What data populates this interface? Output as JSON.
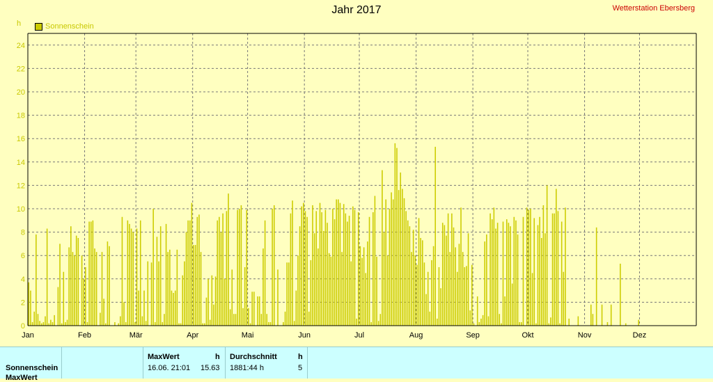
{
  "header": {
    "title": "Jahr 2017",
    "station": "Wetterstation Ebersberg",
    "unit": "h",
    "legend_label": "Sonnenschein"
  },
  "colors": {
    "bar": "#cccc00",
    "background": "#ffffc0",
    "axis_text": "#c8c800",
    "station": "#cc0000",
    "panel": "#ccffff"
  },
  "chart_data": {
    "type": "bar",
    "title": "Jahr 2017",
    "ylabel": "h",
    "ylim": [
      0,
      25
    ],
    "yticks": [
      0,
      2,
      4,
      6,
      8,
      10,
      12,
      14,
      16,
      18,
      20,
      22,
      24
    ],
    "month_labels": [
      "Jan",
      "Feb",
      "Mär",
      "Apr",
      "Mai",
      "Jun",
      "Jul",
      "Aug",
      "Sep",
      "Okt",
      "Nov",
      "Dez"
    ],
    "month_start_days": [
      1,
      32,
      60,
      91,
      121,
      152,
      182,
      213,
      244,
      274,
      305,
      335
    ],
    "grid": true,
    "legend": "top-left",
    "series": [
      {
        "name": "Sonnenschein",
        "values": [
          3.7,
          3.0,
          0.3,
          1.2,
          7.8,
          1.0,
          0.4,
          0.2,
          0.3,
          0.8,
          8.3,
          0.2,
          0.5,
          0.3,
          0.9,
          0.0,
          3.3,
          7.0,
          0.2,
          4.6,
          0.3,
          0.5,
          6.7,
          8.5,
          6.3,
          6.0,
          7.7,
          7.5,
          0.0,
          6.0,
          4.0,
          5.0,
          0.3,
          8.9,
          8.9,
          9.0,
          6.6,
          6.3,
          0.0,
          1.1,
          6.3,
          2.3,
          0.2,
          7.2,
          6.8,
          0.0,
          0.0,
          0.3,
          0.0,
          0.2,
          0.8,
          9.3,
          2.0,
          0.3,
          9.0,
          8.7,
          8.3,
          8.0,
          0.3,
          8.3,
          3.0,
          9.0,
          0.8,
          3.0,
          0.4,
          5.5,
          0.0,
          5.4,
          10.0,
          0.3,
          7.6,
          5.5,
          8.5,
          0.3,
          1.0,
          8.7,
          6.3,
          6.5,
          3.0,
          2.8,
          3.0,
          6.5,
          0.2,
          0.2,
          4.3,
          5.5,
          8.0,
          9.0,
          9.0,
          10.5,
          6.9,
          6.9,
          9.3,
          9.5,
          6.3,
          0.2,
          0.2,
          2.4,
          4.0,
          0.5,
          4.3,
          1.8,
          4.2,
          9.0,
          9.3,
          8.0,
          9.6,
          4.0,
          9.8,
          11.3,
          1.4,
          4.8,
          1.0,
          1.0,
          9.9,
          10.0,
          10.3,
          1.5,
          5.0,
          9.9,
          1.5,
          0.2,
          2.9,
          2.9,
          0.0,
          2.5,
          2.5,
          1.0,
          6.6,
          9.0,
          1.0,
          0.3,
          0.3,
          10.0,
          10.3,
          0.0,
          4.8,
          0.0,
          0.0,
          0.3,
          1.2,
          5.4,
          5.4,
          9.6,
          10.7,
          0.4,
          3.0,
          6.0,
          8.5,
          10.2,
          10.5,
          9.8,
          9.3,
          1.2,
          5.6,
          10.3,
          7.9,
          9.8,
          6.6,
          10.5,
          9.7,
          8.1,
          9.9,
          8.8,
          6.2,
          5.9,
          10.0,
          9.1,
          10.8,
          10.8,
          10.5,
          6.3,
          10.4,
          9.6,
          8.9,
          9.4,
          5.5,
          10.2,
          9.9,
          0.6,
          9.7,
          6.8,
          5.8,
          6.7,
          4.5,
          7.2,
          9.3,
          0.3,
          9.7,
          11.1,
          5.9,
          0.4,
          1.0,
          13.3,
          8.0,
          10.8,
          6.0,
          10.0,
          11.4,
          10.8,
          15.6,
          15.2,
          11.6,
          13.1,
          11.7,
          10.9,
          9.8,
          9.0,
          8.5,
          6.3,
          8.2,
          6.0,
          5.2,
          9.2,
          7.5,
          7.3,
          5.4,
          2.7,
          4.6,
          1.2,
          5.6,
          6.8,
          15.3,
          0.6,
          5.0,
          3.2,
          8.8,
          8.6,
          7.7,
          9.6,
          6.3,
          9.6,
          8.4,
          6.7,
          4.6,
          7.0,
          10.1,
          6.3,
          5.0,
          5.1,
          7.9,
          1.3,
          5.2,
          0.2,
          0.0,
          2.5,
          0.3,
          0.6,
          0.9,
          7.2,
          7.8,
          0.8,
          9.6,
          9.1,
          10.1,
          8.3,
          8.8,
          1.0,
          0.2,
          8.9,
          2.5,
          9.1,
          8.8,
          8.5,
          3.6,
          9.3,
          9.0,
          7.8,
          0.3,
          0.3,
          9.3,
          0.0,
          10.1,
          9.9,
          10.0,
          4.5,
          9.2,
          0.2,
          8.6,
          9.3,
          7.5,
          10.3,
          7.9,
          12.0,
          0.2,
          0.7,
          9.6,
          9.6,
          11.7,
          9.8,
          0.2,
          8.9,
          4.6,
          10.1,
          0.0,
          0.6,
          0.0,
          0.0,
          0.0,
          0.0,
          0.8,
          0.0,
          0.0,
          0.0,
          0.0,
          0.0,
          0.0,
          1.8,
          1.0,
          0.0,
          8.4,
          0.0,
          0.0,
          1.8,
          0.0,
          0.0,
          0.3,
          0.0,
          1.8,
          0.0,
          0.0,
          0.0,
          0.0,
          5.3,
          0.0,
          0.0,
          0.2,
          0.0,
          0.0,
          0.0,
          0.0,
          0.0,
          0.0,
          0.5,
          0.0,
          0.0,
          0.0,
          0.0,
          0.0,
          0.0,
          0.0,
          0.0,
          0.0,
          0.0,
          0.0,
          0.0,
          0.0,
          0.0,
          0.0,
          0.0,
          0.0,
          0.0,
          0.0,
          0.0,
          0.0,
          0.0,
          0.0,
          0.0,
          0.0,
          0.0,
          0.0,
          0.0
        ]
      }
    ]
  },
  "table": {
    "rows": [
      "Sonnenschein",
      "MaxWert"
    ],
    "max_label": "MaxWert",
    "max_unit": "h",
    "max_date": "16.06.  21:01",
    "max_value": "15.63",
    "avg_label": "Durchschnitt",
    "avg_unit": "h",
    "avg_total": "1881:44 h",
    "avg_value": "5"
  }
}
